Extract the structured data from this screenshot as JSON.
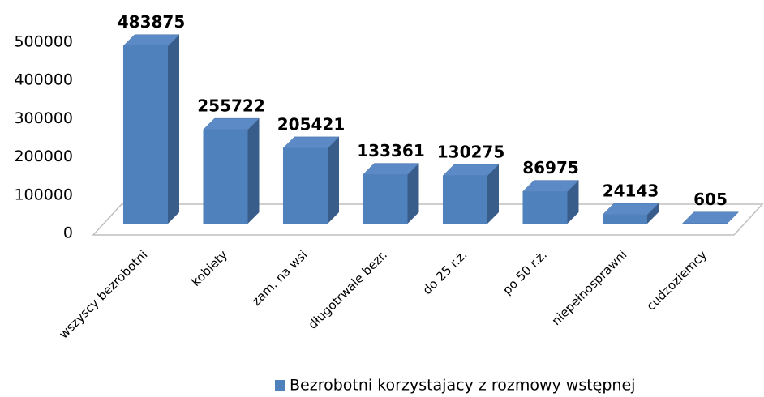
{
  "chart_data": {
    "type": "bar3d",
    "categories": [
      "wszyscy bezrobotni",
      "kobiety",
      "zam. na wsi",
      "długotrwale bezr.",
      "do 25 r.ż.",
      "po 50 r.ż.",
      "niepełnosprawni",
      "cudzoziemcy"
    ],
    "series": [
      {
        "name": "Bezrobotni korzystajacy z rozmowy wstępnej",
        "color": "#4f81bd",
        "values": [
          483875,
          255722,
          205421,
          133361,
          130275,
          86975,
          24143,
          605
        ]
      }
    ],
    "ylim": [
      0,
      500000
    ],
    "yticks": [
      0,
      100000,
      200000,
      300000,
      400000,
      500000
    ],
    "grid": false,
    "legend": "bottom"
  }
}
